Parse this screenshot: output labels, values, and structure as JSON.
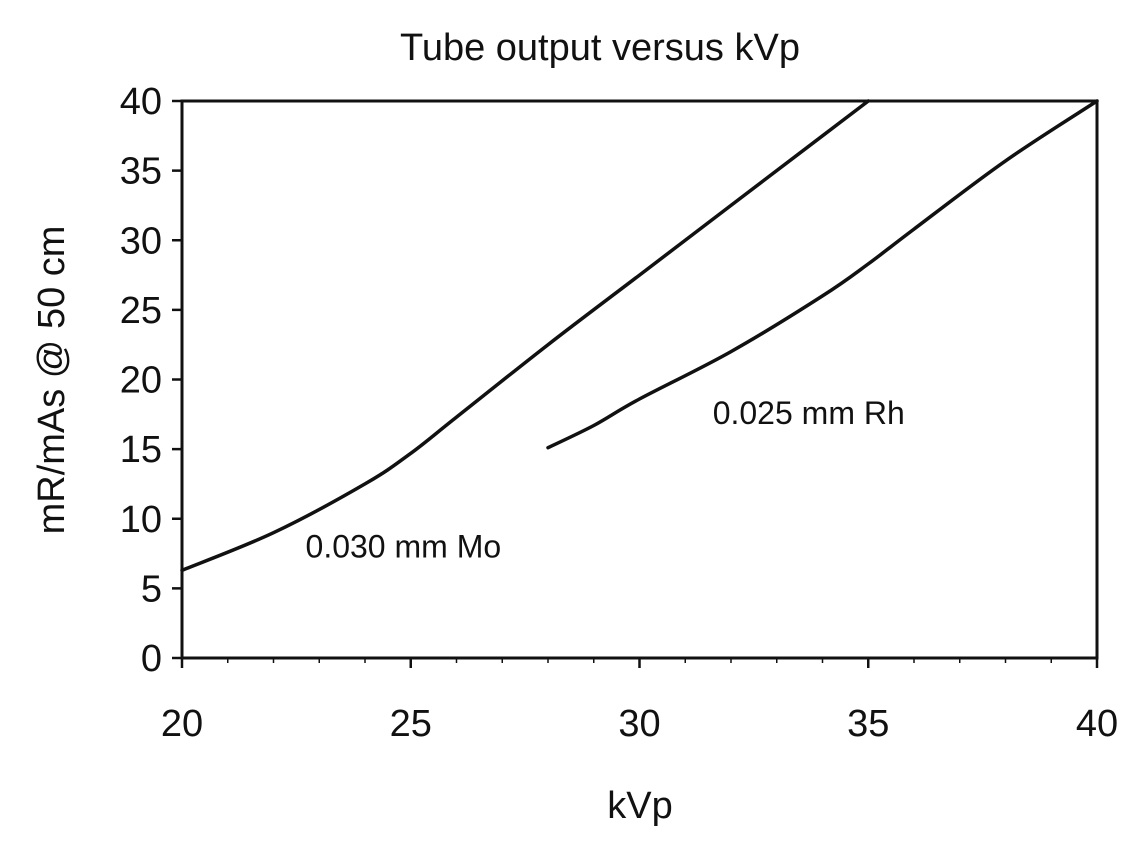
{
  "chart_data": {
    "type": "line",
    "title": "Tube output versus kVp",
    "xlabel": "kVp",
    "ylabel": "mR/mAs @ 50 cm",
    "xlim": [
      20,
      40
    ],
    "ylim": [
      0,
      40
    ],
    "xticks": [
      20,
      25,
      30,
      35,
      40
    ],
    "yticks": [
      0,
      5,
      10,
      15,
      20,
      25,
      30,
      35,
      40
    ],
    "grid": false,
    "legend": "none",
    "series": [
      {
        "name": "0.030 mm Mo",
        "x": [
          20,
          22,
          24,
          25,
          26,
          28,
          30,
          32,
          34,
          35
        ],
        "y": [
          6.3,
          9.0,
          12.5,
          14.7,
          17.3,
          22.5,
          27.5,
          32.5,
          37.5,
          40.0
        ]
      },
      {
        "name": "0.025 mm Rh",
        "x": [
          28,
          29,
          30,
          32,
          34,
          35,
          36,
          38,
          40
        ],
        "y": [
          15.1,
          16.7,
          18.6,
          22.0,
          26.0,
          28.3,
          30.8,
          35.7,
          41.0
        ]
      }
    ],
    "annotations": [
      {
        "text": "0.030 mm Mo",
        "series": "0.030 mm Mo",
        "x": 22.7,
        "y": 7.2
      },
      {
        "text": "0.025 mm Rh",
        "series": "0.025 mm Rh",
        "x": 31.6,
        "y": 16.8
      }
    ]
  }
}
